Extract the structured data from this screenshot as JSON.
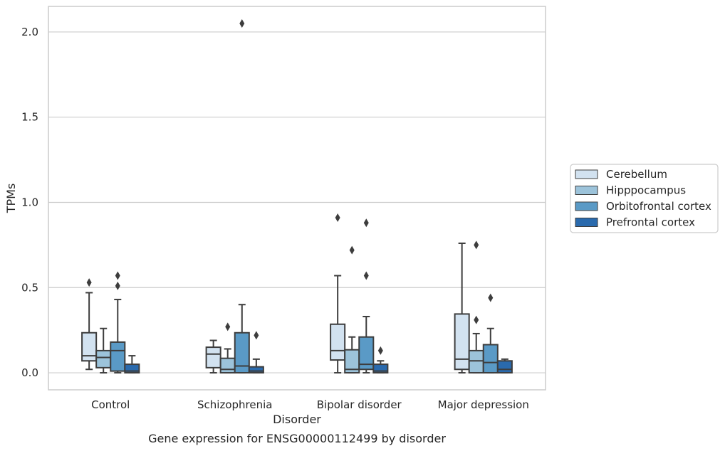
{
  "chart_data": {
    "type": "box",
    "caption": "Gene expression for ENSG00000112499 by disorder",
    "xlabel": "Disorder",
    "ylabel": "TPMs",
    "ylim": [
      -0.1,
      2.15
    ],
    "yticks": [
      "0.0",
      "0.5",
      "1.0",
      "1.5",
      "2.0"
    ],
    "grid": "horizontal",
    "legend_position": "right",
    "categories": [
      "Control",
      "Schizophrenia",
      "Bipolar disorder",
      "Major depression"
    ],
    "series": [
      {
        "name": "Cerebellum",
        "color": "#d2e2f0",
        "boxes": [
          {
            "whislo": 0.02,
            "q1": 0.07,
            "med": 0.1,
            "q3": 0.235,
            "whishi": 0.47,
            "fliers": [
              0.53
            ]
          },
          {
            "whislo": 0.0,
            "q1": 0.03,
            "med": 0.11,
            "q3": 0.15,
            "whishi": 0.19,
            "fliers": []
          },
          {
            "whislo": 0.0,
            "q1": 0.075,
            "med": 0.13,
            "q3": 0.285,
            "whishi": 0.57,
            "fliers": [
              0.91
            ]
          },
          {
            "whislo": 0.0,
            "q1": 0.02,
            "med": 0.08,
            "q3": 0.345,
            "whishi": 0.76,
            "fliers": []
          }
        ]
      },
      {
        "name": "Hipppocampus",
        "color": "#9cc3da",
        "boxes": [
          {
            "whislo": 0.0,
            "q1": 0.03,
            "med": 0.09,
            "q3": 0.13,
            "whishi": 0.26,
            "fliers": []
          },
          {
            "whislo": 0.0,
            "q1": 0.0,
            "med": 0.02,
            "q3": 0.085,
            "whishi": 0.14,
            "fliers": [
              0.27
            ]
          },
          {
            "whislo": 0.0,
            "q1": 0.0,
            "med": 0.02,
            "q3": 0.135,
            "whishi": 0.21,
            "fliers": [
              0.72
            ]
          },
          {
            "whislo": 0.0,
            "q1": 0.0,
            "med": 0.07,
            "q3": 0.13,
            "whishi": 0.23,
            "fliers": [
              0.31,
              0.75
            ]
          }
        ]
      },
      {
        "name": "Orbitofrontal cortex",
        "color": "#5a9ac6",
        "boxes": [
          {
            "whislo": 0.0,
            "q1": 0.01,
            "med": 0.13,
            "q3": 0.18,
            "whishi": 0.43,
            "fliers": [
              0.51,
              0.57
            ]
          },
          {
            "whislo": 0.0,
            "q1": 0.0,
            "med": 0.04,
            "q3": 0.235,
            "whishi": 0.4,
            "fliers": [
              2.05
            ]
          },
          {
            "whislo": 0.0,
            "q1": 0.02,
            "med": 0.05,
            "q3": 0.21,
            "whishi": 0.33,
            "fliers": [
              0.57,
              0.88
            ]
          },
          {
            "whislo": 0.0,
            "q1": 0.0,
            "med": 0.06,
            "q3": 0.165,
            "whishi": 0.26,
            "fliers": [
              0.44
            ]
          }
        ]
      },
      {
        "name": "Prefrontal cortex",
        "color": "#2a6aad",
        "boxes": [
          {
            "whislo": 0.0,
            "q1": 0.0,
            "med": 0.01,
            "q3": 0.05,
            "whishi": 0.1,
            "fliers": []
          },
          {
            "whislo": 0.0,
            "q1": 0.0,
            "med": 0.01,
            "q3": 0.035,
            "whishi": 0.08,
            "fliers": [
              0.22
            ]
          },
          {
            "whislo": 0.0,
            "q1": 0.0,
            "med": 0.01,
            "q3": 0.05,
            "whishi": 0.07,
            "fliers": [
              0.13
            ]
          },
          {
            "whislo": 0.0,
            "q1": 0.0,
            "med": 0.02,
            "q3": 0.07,
            "whishi": 0.08,
            "fliers": []
          }
        ]
      }
    ]
  }
}
